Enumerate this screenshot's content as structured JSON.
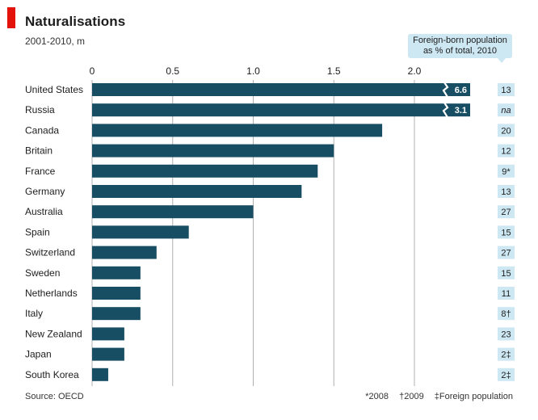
{
  "header": {
    "title": "Naturalisations",
    "subtitle": "2001-2010, m",
    "callout_line1": "Foreign-born population",
    "callout_line2": "as % of total, 2010"
  },
  "footer": {
    "source": "Source: OECD",
    "note_2008": "*2008",
    "note_2009": "†2009",
    "note_foreign": "‡Foreign population"
  },
  "colors": {
    "bar": "#174e64",
    "callout": "#cde7f3",
    "grid": "#b0b0b0",
    "accent": "#e3120b"
  },
  "chart_data": {
    "type": "bar",
    "orientation": "horizontal",
    "title": "Naturalisations",
    "subtitle": "2001-2010, m",
    "xlim": [
      0,
      2.25
    ],
    "xticks": [
      "0",
      "0.5",
      "1.0",
      "1.5",
      "2.0"
    ],
    "grid": true,
    "categories": [
      "United States",
      "Russia",
      "Canada",
      "Britain",
      "France",
      "Germany",
      "Australia",
      "Spain",
      "Switzerland",
      "Sweden",
      "Netherlands",
      "Italy",
      "New Zealand",
      "Japan",
      "South Korea"
    ],
    "values": [
      6.6,
      3.1,
      1.8,
      1.5,
      1.4,
      1.3,
      1.0,
      0.6,
      0.4,
      0.3,
      0.3,
      0.3,
      0.2,
      0.2,
      0.1
    ],
    "value_labels": [
      "6.6",
      "3.1",
      "",
      "",
      "",
      "",
      "",
      "",
      "",
      "",
      "",
      "",
      "",
      "",
      ""
    ],
    "foreign_born_pct": [
      "13",
      "na",
      "20",
      "12",
      "9*",
      "13",
      "27",
      "15",
      "27",
      "15",
      "11",
      "8†",
      "23",
      "2‡",
      "2‡"
    ]
  }
}
